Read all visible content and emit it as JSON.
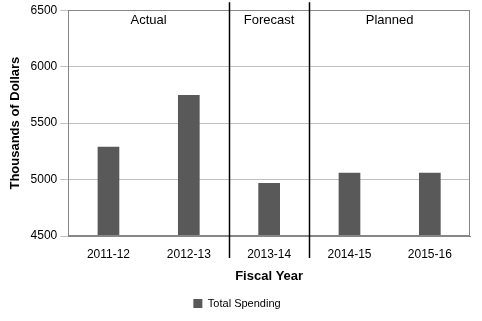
{
  "chart_data": {
    "type": "bar",
    "x_label": "Fiscal Year",
    "y_label": "Thousands of Dollars",
    "categories": [
      "2011-12",
      "2012-13",
      "2013-14",
      "2014-15",
      "2015-16"
    ],
    "series": [
      {
        "name": "Total Spending",
        "color": "#595959",
        "values": [
          5290,
          5750,
          4970,
          5060,
          5060
        ]
      }
    ],
    "ylim": [
      4500,
      6500
    ],
    "yticks": [
      4500,
      5000,
      5500,
      6000,
      6500
    ],
    "grid": true,
    "legend": "bottom",
    "annotations": [
      {
        "text": "Actual",
        "from": "2011-12",
        "to": "2012-13"
      },
      {
        "text": "Forecast",
        "from": "2013-14",
        "to": "2013-14"
      },
      {
        "text": "Planned",
        "from": "2014-15",
        "to": "2015-16"
      }
    ]
  }
}
